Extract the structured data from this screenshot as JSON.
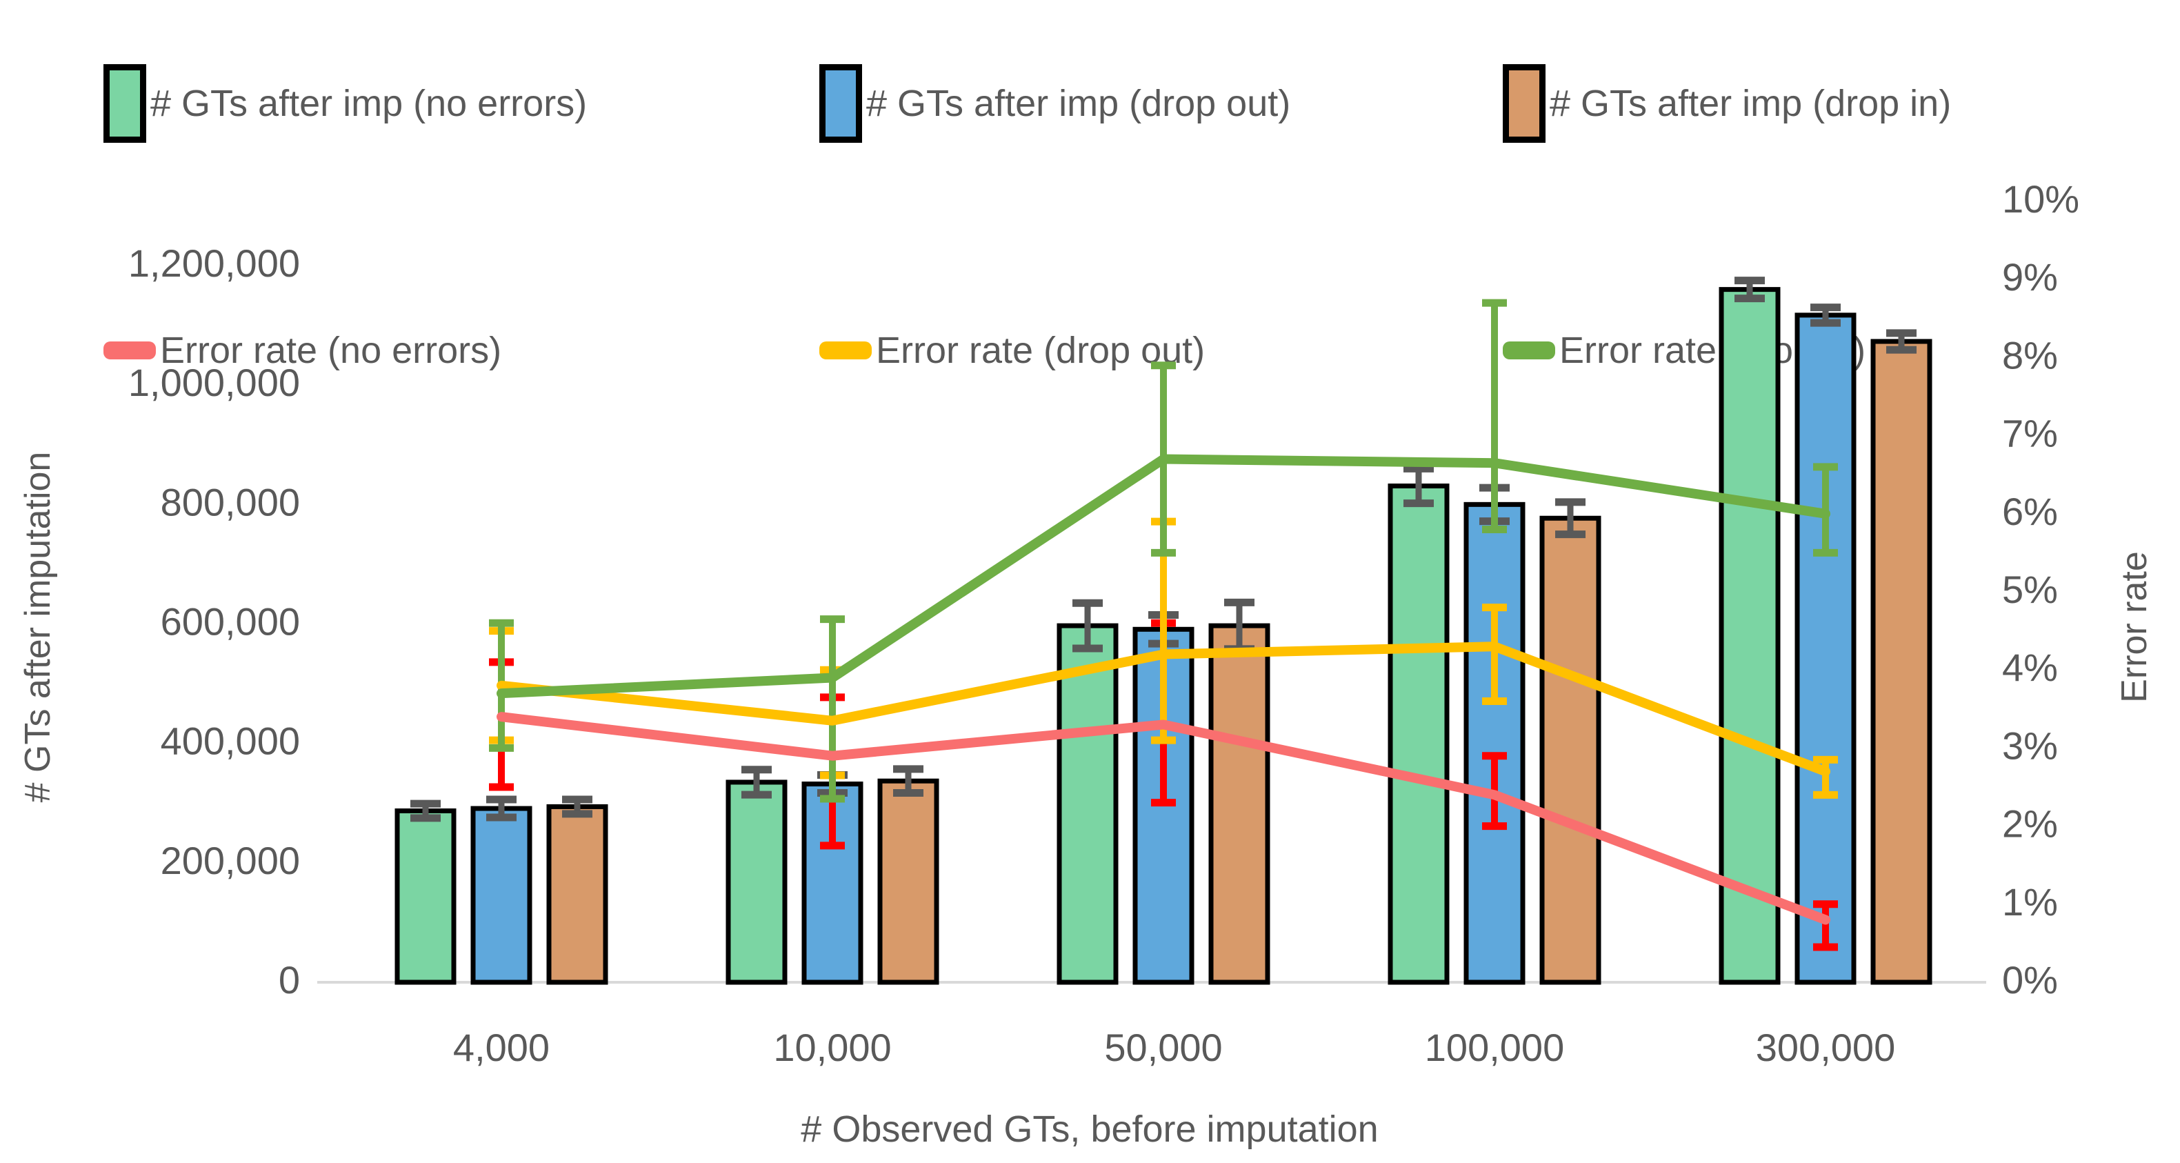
{
  "chart_data": {
    "type": "bar",
    "subtype": "grouped-bars-with-lines-combo",
    "title": "",
    "xlabel": "# Observed GTs, before imputation",
    "ylabel_left": "# GTs after imputation",
    "ylabel_right": "Error rate",
    "categories": [
      "4,000",
      "10,000",
      "50,000",
      "100,000",
      "300,000"
    ],
    "axes": {
      "left": {
        "min": 0,
        "max": 1200000,
        "step": 200000,
        "ticks": [
          "0",
          "200,000",
          "400,000",
          "600,000",
          "800,000",
          "1,000,000",
          "1,200,000"
        ]
      },
      "right": {
        "min": 0,
        "max": 10,
        "step": 1,
        "ticks": [
          "0%",
          "1%",
          "2%",
          "3%",
          "4%",
          "5%",
          "6%",
          "7%",
          "8%",
          "9%",
          "10%"
        ]
      },
      "grid": false
    },
    "legend_position": "top",
    "bar_series": [
      {
        "name": "# GTs after imp (no errors)",
        "color": "#7BD5A3",
        "values": [
          287000,
          335000,
          597000,
          831000,
          1160000
        ],
        "err": [
          12000,
          21000,
          38000,
          29000,
          15000
        ]
      },
      {
        "name": "# GTs after imp (drop out)",
        "color": "#5FA8DC",
        "values": [
          291000,
          332000,
          591000,
          800000,
          1117000
        ],
        "err": [
          15000,
          15000,
          24000,
          28000,
          13000
        ]
      },
      {
        "name": "# GTs after imp (drop in)",
        "color": "#D89A6A",
        "values": [
          294000,
          337000,
          597000,
          777000,
          1073000
        ],
        "err": [
          12000,
          20000,
          39000,
          27000,
          14000
        ]
      }
    ],
    "line_series": [
      {
        "name": "Error rate (no errors)",
        "color": "#F96F6F",
        "err_color": "#FF0000",
        "values": [
          3.4,
          2.9,
          3.3,
          2.4,
          0.8
        ],
        "err_lo": [
          2.5,
          1.75,
          2.3,
          2.0,
          0.45
        ],
        "err_hi": [
          4.1,
          3.65,
          4.6,
          2.9,
          1.0
        ]
      },
      {
        "name": "Error rate (drop out)",
        "color": "#FFC000",
        "err_color": "#FFC000",
        "values": [
          3.8,
          3.35,
          4.2,
          4.3,
          2.7
        ],
        "err_lo": [
          3.1,
          2.65,
          3.1,
          3.6,
          2.4
        ],
        "err_hi": [
          4.5,
          4.0,
          5.9,
          4.8,
          2.85
        ]
      },
      {
        "name": "Error rate (drop in)",
        "color": "#6FAE45",
        "err_color": "#70AD47",
        "values": [
          3.7,
          3.9,
          6.7,
          6.65,
          6.0
        ],
        "err_lo": [
          3.0,
          2.35,
          5.5,
          5.8,
          5.5
        ],
        "err_hi": [
          4.6,
          4.65,
          7.9,
          8.7,
          6.6
        ]
      }
    ],
    "styles": {
      "text_color": "#595959",
      "axis_line_color": "#D9D9D9",
      "bar_err_color": "#595959",
      "bar_border_color": "#000000",
      "background": "#FFFFFF"
    }
  }
}
